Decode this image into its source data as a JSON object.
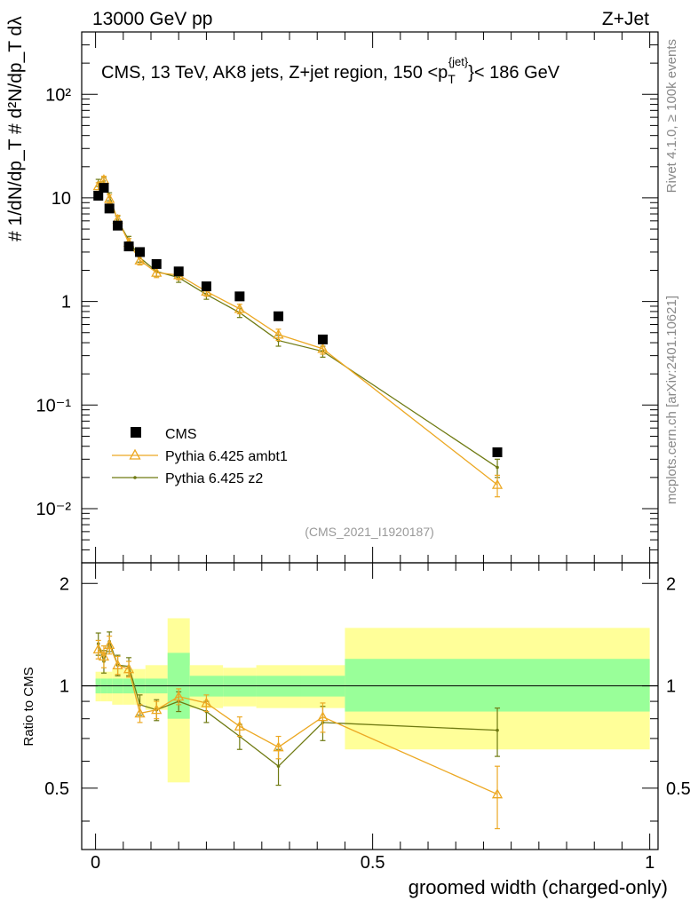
{
  "header": {
    "left": "13000 GeV pp",
    "right": "Z+Jet"
  },
  "side_labels": {
    "rivet": "Rivet 4.1.0, ≥ 100k events",
    "mcplots": "mcplots.cern.ch [arXiv:2401.10621]"
  },
  "main_title": {
    "prefix": "CMS, 13 TeV, AK8 jets, Z+jet region, 150 <p",
    "sub": "T",
    "sup": "{jet}",
    "suffix": "}< 186 GeV"
  },
  "watermark": "(CMS_2021_I1920187)",
  "xlabel": "groomed width (charged-only)",
  "ylabel_main": "#  1/dN/dp_T  # d²N/dp_T dλ",
  "ylabel_ratio": "Ratio to CMS",
  "legend": {
    "data": "CMS",
    "mc1": "Pythia 6.425 ambt1",
    "mc2": "Pythia 6.425 z2"
  },
  "colors": {
    "data": "#000000",
    "mc1": "#eca823",
    "mc2": "#6f7a12",
    "band_inner": "#99ff99",
    "band_outer": "#ffff99"
  },
  "chart_data": {
    "type": "scatter",
    "title": "CMS, 13 TeV, AK8 jets, Z+jet region, 150 < pT jet < 186 GeV",
    "xlabel": "groomed width (charged-only)",
    "ylabel": "1/dN/dpT d2N/dpT dlambda",
    "xlim": [
      -0.025,
      1.015
    ],
    "ylim_main": [
      0.003,
      400
    ],
    "yscale_main": "log",
    "ylim_ratio": [
      0.33,
      2.3
    ],
    "yscale_ratio": "log",
    "x_ticks": [
      0,
      0.5,
      1
    ],
    "x_tick_labels": [
      "0",
      "0.5",
      "1"
    ],
    "y_ticks_main": [
      0.01,
      0.1,
      1,
      10,
      100
    ],
    "y_tick_labels_main": [
      "10⁻²",
      "10⁻¹",
      "1",
      "10",
      "10²"
    ],
    "y_ticks_ratio": [
      0.5,
      1,
      2
    ],
    "y_tick_labels_ratio": [
      "0.5",
      "1",
      "2"
    ],
    "bins": [
      {
        "x": 0.005,
        "lo": 0.0,
        "hi": 0.01
      },
      {
        "x": 0.015,
        "lo": 0.01,
        "hi": 0.02
      },
      {
        "x": 0.025,
        "lo": 0.02,
        "hi": 0.03
      },
      {
        "x": 0.04,
        "lo": 0.03,
        "hi": 0.05
      },
      {
        "x": 0.06,
        "lo": 0.05,
        "hi": 0.07
      },
      {
        "x": 0.08,
        "lo": 0.07,
        "hi": 0.09
      },
      {
        "x": 0.11,
        "lo": 0.09,
        "hi": 0.13
      },
      {
        "x": 0.15,
        "lo": 0.13,
        "hi": 0.17
      },
      {
        "x": 0.2,
        "lo": 0.17,
        "hi": 0.23
      },
      {
        "x": 0.26,
        "lo": 0.23,
        "hi": 0.29
      },
      {
        "x": 0.33,
        "lo": 0.29,
        "hi": 0.37
      },
      {
        "x": 0.41,
        "lo": 0.37,
        "hi": 0.45
      },
      {
        "x": 0.725,
        "lo": 0.45,
        "hi": 1.0
      }
    ],
    "series": [
      {
        "name": "CMS",
        "values": [
          10.5,
          12.5,
          7.9,
          5.4,
          3.4,
          3.0,
          2.3,
          1.95,
          1.4,
          1.12,
          0.72,
          0.43,
          0.035
        ]
      },
      {
        "name": "Pythia 6.425 ambt1",
        "values": [
          13.0,
          15.0,
          9.8,
          6.2,
          3.7,
          2.5,
          1.9,
          1.8,
          1.25,
          0.85,
          0.48,
          0.35,
          0.017
        ],
        "errors": [
          1.0,
          1.2,
          0.9,
          0.6,
          0.35,
          0.25,
          0.2,
          0.18,
          0.13,
          0.09,
          0.06,
          0.04,
          0.004
        ]
      },
      {
        "name": "Pythia 6.425 z2",
        "values": [
          14.0,
          14.5,
          10.3,
          6.1,
          3.9,
          2.65,
          1.95,
          1.7,
          1.17,
          0.78,
          0.42,
          0.33,
          0.025
        ],
        "errors": [
          1.1,
          1.2,
          0.9,
          0.6,
          0.35,
          0.25,
          0.2,
          0.17,
          0.12,
          0.08,
          0.05,
          0.04,
          0.005
        ]
      }
    ],
    "ratio": {
      "band_inner": [
        [
          0.95,
          1.05
        ],
        [
          0.95,
          1.05
        ],
        [
          0.95,
          1.05
        ],
        [
          0.95,
          1.05
        ],
        [
          0.95,
          1.05
        ],
        [
          0.95,
          1.05
        ],
        [
          0.95,
          1.05
        ],
        [
          0.8,
          1.25
        ],
        [
          0.93,
          1.07
        ],
        [
          0.93,
          1.07
        ],
        [
          0.93,
          1.07
        ],
        [
          0.93,
          1.07
        ],
        [
          0.84,
          1.2
        ]
      ],
      "band_outer": [
        [
          0.9,
          1.1
        ],
        [
          0.9,
          1.1
        ],
        [
          0.9,
          1.1
        ],
        [
          0.88,
          1.12
        ],
        [
          0.88,
          1.12
        ],
        [
          0.88,
          1.12
        ],
        [
          0.85,
          1.15
        ],
        [
          0.52,
          1.58
        ],
        [
          0.86,
          1.15
        ],
        [
          0.87,
          1.13
        ],
        [
          0.86,
          1.15
        ],
        [
          0.86,
          1.15
        ],
        [
          0.65,
          1.48
        ]
      ],
      "series": [
        {
          "name": "Pythia 6.425 ambt1",
          "values": [
            1.28,
            1.22,
            1.32,
            1.15,
            1.12,
            0.83,
            0.85,
            0.93,
            0.89,
            0.76,
            0.66,
            0.81,
            0.48
          ],
          "errors": [
            0.08,
            0.09,
            0.08,
            0.07,
            0.06,
            0.05,
            0.05,
            0.05,
            0.05,
            0.05,
            0.05,
            0.08,
            0.1
          ]
        },
        {
          "name": "Pythia 6.425 z2",
          "values": [
            1.33,
            1.18,
            1.35,
            1.15,
            1.14,
            0.88,
            0.85,
            0.9,
            0.84,
            0.71,
            0.58,
            0.78,
            0.74
          ],
          "errors": [
            0.1,
            0.09,
            0.09,
            0.08,
            0.07,
            0.06,
            0.06,
            0.06,
            0.06,
            0.06,
            0.07,
            0.09,
            0.12
          ]
        }
      ]
    },
    "legend_position": "lower-left"
  }
}
